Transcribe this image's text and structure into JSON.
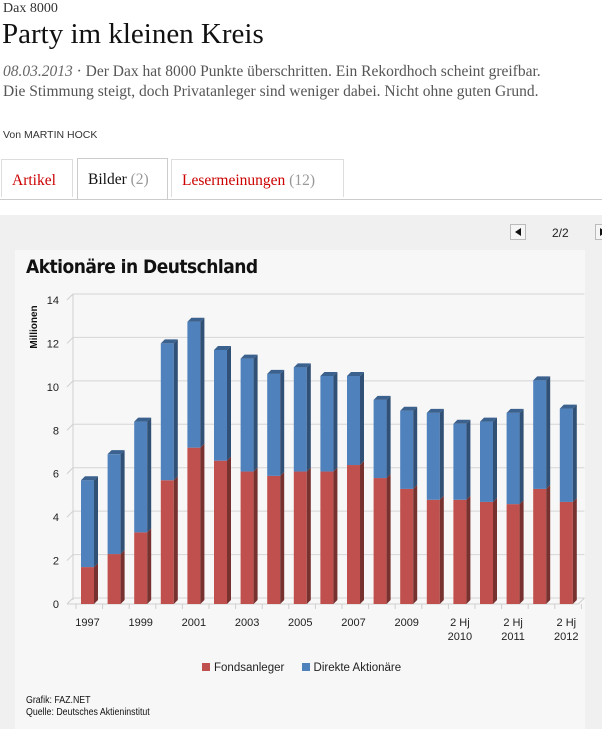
{
  "article": {
    "kicker": "Dax 8000",
    "title": "Party im kleinen Kreis",
    "date": "08.03.2013",
    "separator": "·",
    "teaser": "Der Dax hat 8000 Punkte überschritten. Ein Rekordhoch scheint greifbar. Die Stimmung steigt, doch Privatanleger sind weniger dabei. Nicht ohne guten Grund.",
    "author": "Von MARTIN HOCK"
  },
  "tabs": [
    {
      "label": "Artikel",
      "count": ""
    },
    {
      "label": "Bilder",
      "count": "(2)",
      "active": true
    },
    {
      "label": "Lesermeinungen",
      "count": "(12)"
    }
  ],
  "pager": {
    "prev_icon": "triangle-left-icon",
    "next_icon": "triangle-right-icon",
    "counter": "2/2"
  },
  "colors": {
    "fondsanleger": "#c0504d",
    "direkte": "#4f81bd",
    "tab_link": "#cc0000"
  },
  "credits": {
    "grafik": "Grafik: FAZ.NET",
    "quelle": "Quelle: Deutsches Aktieninstitut"
  },
  "chart_data": {
    "type": "bar",
    "stacked": true,
    "title": "Aktionäre in Deutschland",
    "ylabel": "Millionen",
    "xlabel": "",
    "ylim": [
      0,
      14
    ],
    "yticks": [
      0,
      2,
      4,
      6,
      8,
      10,
      12,
      14
    ],
    "grid": true,
    "legend_position": "bottom",
    "categories": [
      "1997",
      "1998",
      "1999",
      "2000",
      "2001",
      "2002",
      "2003",
      "2004",
      "2005",
      "2006",
      "2007",
      "2008",
      "2009",
      "1 Hj 2010",
      "2 Hj 2010",
      "1 Hj 2011",
      "2 Hj 2011",
      "1 Hj 2012",
      "2 Hj 2012"
    ],
    "tick_labels": [
      {
        "index": 0,
        "lines": [
          "1997"
        ]
      },
      {
        "index": 2,
        "lines": [
          "1999"
        ]
      },
      {
        "index": 4,
        "lines": [
          "2001"
        ]
      },
      {
        "index": 6,
        "lines": [
          "2003"
        ]
      },
      {
        "index": 8,
        "lines": [
          "2005"
        ]
      },
      {
        "index": 10,
        "lines": [
          "2007"
        ]
      },
      {
        "index": 12,
        "lines": [
          "2009"
        ]
      },
      {
        "index": 14,
        "lines": [
          "2 Hj",
          "2010"
        ]
      },
      {
        "index": 16,
        "lines": [
          "2 Hj",
          "2011"
        ]
      },
      {
        "index": 18,
        "lines": [
          "2 Hj",
          "2012"
        ]
      }
    ],
    "series": [
      {
        "name": "Fondsanleger",
        "values": [
          1.7,
          2.3,
          3.3,
          5.7,
          7.2,
          6.6,
          6.1,
          5.9,
          6.1,
          6.1,
          6.4,
          5.8,
          5.3,
          4.8,
          4.8,
          4.7,
          4.6,
          5.3,
          4.7
        ]
      },
      {
        "name": "Direkte Aktionäre",
        "values": [
          4.0,
          4.6,
          5.1,
          6.3,
          5.8,
          5.1,
          5.2,
          4.7,
          4.8,
          4.4,
          4.1,
          3.6,
          3.6,
          4.0,
          3.5,
          3.7,
          4.2,
          5.0,
          4.3
        ]
      }
    ]
  }
}
